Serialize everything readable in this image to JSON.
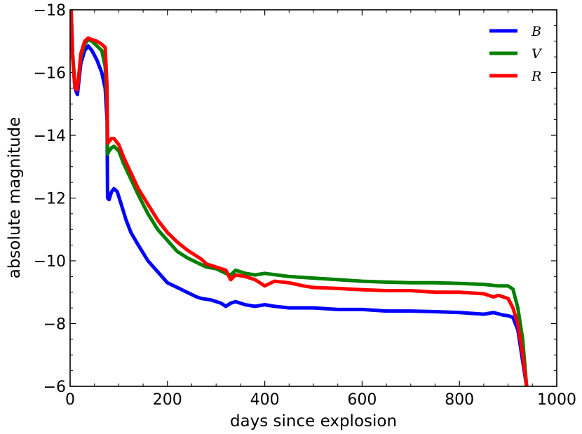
{
  "chart_data": {
    "type": "line",
    "title": "",
    "xlabel": "days since explosion",
    "ylabel": "absolute magnitude",
    "xlim": [
      0,
      1000
    ],
    "ylim": [
      -18,
      -6
    ],
    "y_inverted": true,
    "grid": false,
    "legend_position": "top-right",
    "x_ticks": [
      0,
      200,
      400,
      600,
      800,
      1000
    ],
    "x_tick_labels": [
      "0",
      "200",
      "400",
      "600",
      "800",
      "1000"
    ],
    "y_ticks": [
      -18,
      -16,
      -14,
      -12,
      -10,
      -8,
      -6
    ],
    "y_tick_labels": [
      "−18",
      "−16",
      "−14",
      "−12",
      "−10",
      "−8",
      "−6"
    ],
    "series": [
      {
        "name": "B",
        "color": "#0000ff",
        "points": [
          [
            2,
            -18
          ],
          [
            5,
            -16.6
          ],
          [
            10,
            -15.5
          ],
          [
            15,
            -15.3
          ],
          [
            22,
            -16.3
          ],
          [
            30,
            -16.7
          ],
          [
            37,
            -16.85
          ],
          [
            45,
            -16.7
          ],
          [
            55,
            -16.4
          ],
          [
            65,
            -16.0
          ],
          [
            72,
            -15.5
          ],
          [
            76,
            -14.5
          ],
          [
            77,
            -12.0
          ],
          [
            80,
            -11.95
          ],
          [
            85,
            -12.2
          ],
          [
            90,
            -12.3
          ],
          [
            97,
            -12.2
          ],
          [
            105,
            -11.8
          ],
          [
            115,
            -11.3
          ],
          [
            125,
            -10.9
          ],
          [
            140,
            -10.5
          ],
          [
            160,
            -10.0
          ],
          [
            180,
            -9.65
          ],
          [
            200,
            -9.3
          ],
          [
            220,
            -9.15
          ],
          [
            240,
            -9.0
          ],
          [
            260,
            -8.85
          ],
          [
            270,
            -8.8
          ],
          [
            290,
            -8.75
          ],
          [
            310,
            -8.65
          ],
          [
            320,
            -8.55
          ],
          [
            330,
            -8.65
          ],
          [
            340,
            -8.7
          ],
          [
            360,
            -8.6
          ],
          [
            380,
            -8.55
          ],
          [
            400,
            -8.6
          ],
          [
            420,
            -8.55
          ],
          [
            450,
            -8.5
          ],
          [
            500,
            -8.5
          ],
          [
            550,
            -8.45
          ],
          [
            600,
            -8.45
          ],
          [
            650,
            -8.4
          ],
          [
            700,
            -8.4
          ],
          [
            750,
            -8.38
          ],
          [
            800,
            -8.35
          ],
          [
            850,
            -8.3
          ],
          [
            870,
            -8.35
          ],
          [
            890,
            -8.27
          ],
          [
            900,
            -8.25
          ],
          [
            910,
            -8.2
          ],
          [
            920,
            -7.8
          ],
          [
            930,
            -6.8
          ],
          [
            938,
            -6.0
          ]
        ]
      },
      {
        "name": "V",
        "color": "#008000",
        "points": [
          [
            2,
            -18
          ],
          [
            5,
            -16.6
          ],
          [
            10,
            -15.6
          ],
          [
            15,
            -15.5
          ],
          [
            22,
            -16.5
          ],
          [
            30,
            -16.9
          ],
          [
            37,
            -17.05
          ],
          [
            45,
            -17.0
          ],
          [
            55,
            -16.85
          ],
          [
            65,
            -16.7
          ],
          [
            72,
            -16.2
          ],
          [
            76,
            -15.0
          ],
          [
            77,
            -13.4
          ],
          [
            80,
            -13.5
          ],
          [
            85,
            -13.6
          ],
          [
            90,
            -13.65
          ],
          [
            100,
            -13.5
          ],
          [
            110,
            -13.1
          ],
          [
            125,
            -12.6
          ],
          [
            140,
            -12.1
          ],
          [
            160,
            -11.5
          ],
          [
            180,
            -11.0
          ],
          [
            200,
            -10.65
          ],
          [
            220,
            -10.3
          ],
          [
            240,
            -10.1
          ],
          [
            260,
            -9.95
          ],
          [
            280,
            -9.8
          ],
          [
            300,
            -9.75
          ],
          [
            320,
            -9.6
          ],
          [
            330,
            -9.55
          ],
          [
            340,
            -9.7
          ],
          [
            360,
            -9.6
          ],
          [
            380,
            -9.55
          ],
          [
            400,
            -9.6
          ],
          [
            450,
            -9.5
          ],
          [
            500,
            -9.45
          ],
          [
            550,
            -9.4
          ],
          [
            600,
            -9.35
          ],
          [
            650,
            -9.32
          ],
          [
            700,
            -9.3
          ],
          [
            750,
            -9.3
          ],
          [
            800,
            -9.28
          ],
          [
            850,
            -9.25
          ],
          [
            880,
            -9.2
          ],
          [
            900,
            -9.2
          ],
          [
            910,
            -9.1
          ],
          [
            920,
            -8.5
          ],
          [
            930,
            -7.5
          ],
          [
            938,
            -6.0
          ]
        ]
      },
      {
        "name": "R",
        "color": "#ff0000",
        "points": [
          [
            2,
            -18
          ],
          [
            5,
            -16.5
          ],
          [
            10,
            -15.5
          ],
          [
            15,
            -15.45
          ],
          [
            22,
            -16.6
          ],
          [
            30,
            -17.0
          ],
          [
            37,
            -17.1
          ],
          [
            45,
            -17.05
          ],
          [
            55,
            -17.0
          ],
          [
            65,
            -16.9
          ],
          [
            72,
            -16.8
          ],
          [
            76,
            -15.5
          ],
          [
            77,
            -13.75
          ],
          [
            80,
            -13.8
          ],
          [
            85,
            -13.9
          ],
          [
            90,
            -13.9
          ],
          [
            100,
            -13.7
          ],
          [
            110,
            -13.3
          ],
          [
            125,
            -12.8
          ],
          [
            140,
            -12.3
          ],
          [
            160,
            -11.8
          ],
          [
            180,
            -11.3
          ],
          [
            200,
            -10.9
          ],
          [
            220,
            -10.6
          ],
          [
            240,
            -10.35
          ],
          [
            260,
            -10.15
          ],
          [
            270,
            -10.05
          ],
          [
            280,
            -9.9
          ],
          [
            300,
            -9.8
          ],
          [
            320,
            -9.7
          ],
          [
            330,
            -9.4
          ],
          [
            340,
            -9.55
          ],
          [
            360,
            -9.5
          ],
          [
            380,
            -9.4
          ],
          [
            400,
            -9.2
          ],
          [
            420,
            -9.35
          ],
          [
            450,
            -9.3
          ],
          [
            480,
            -9.2
          ],
          [
            500,
            -9.15
          ],
          [
            550,
            -9.12
          ],
          [
            600,
            -9.08
          ],
          [
            650,
            -9.05
          ],
          [
            700,
            -9.05
          ],
          [
            750,
            -9.0
          ],
          [
            800,
            -9.0
          ],
          [
            850,
            -8.95
          ],
          [
            870,
            -8.85
          ],
          [
            880,
            -8.9
          ],
          [
            890,
            -8.85
          ],
          [
            900,
            -8.8
          ],
          [
            910,
            -8.5
          ],
          [
            920,
            -8.0
          ],
          [
            930,
            -7.0
          ],
          [
            938,
            -6.0
          ]
        ]
      }
    ]
  }
}
